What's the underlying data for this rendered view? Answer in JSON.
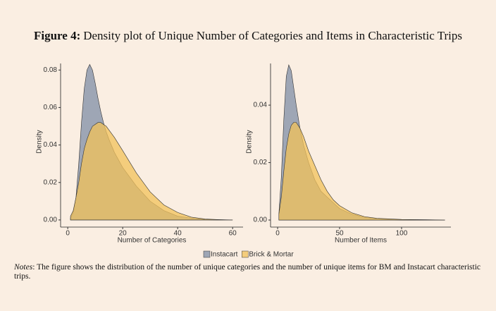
{
  "figure_label": "Figure 4:",
  "title": "Density plot of Unique Number of Categories and Items in Characteristic Trips",
  "legend": [
    {
      "name": "Instacart",
      "color": "#7f8ea6"
    },
    {
      "name": "Brick & Mortar",
      "color": "#f2c25a"
    }
  ],
  "notes_label": "Notes",
  "notes": ": The figure shows the distribution of the number of unique categories and the number of unique items for BM and Instacart characteristic trips.",
  "chart_data": [
    {
      "type": "area",
      "xlabel": "Number of Categories",
      "ylabel": "Density",
      "x": [
        1,
        2,
        3,
        4,
        5,
        6,
        7,
        8,
        9,
        10,
        11,
        12,
        13,
        14,
        15,
        17,
        20,
        25,
        30,
        35,
        40,
        45,
        50,
        55,
        60
      ],
      "series": [
        {
          "legend": 0,
          "values": [
            0.001,
            0.004,
            0.012,
            0.03,
            0.052,
            0.07,
            0.08,
            0.083,
            0.08,
            0.073,
            0.065,
            0.058,
            0.052,
            0.047,
            0.043,
            0.036,
            0.028,
            0.018,
            0.01,
            0.005,
            0.002,
            0.001,
            0.0003,
            0.0001,
            0
          ]
        },
        {
          "legend": 1,
          "values": [
            0.002,
            0.005,
            0.012,
            0.02,
            0.03,
            0.038,
            0.043,
            0.047,
            0.05,
            0.051,
            0.052,
            0.052,
            0.051,
            0.05,
            0.048,
            0.044,
            0.037,
            0.025,
            0.015,
            0.008,
            0.004,
            0.0015,
            0.0005,
            0.0002,
            0
          ]
        }
      ],
      "xlim": [
        -2.6,
        63.8
      ],
      "ylim": [
        -0.0038,
        0.0835
      ],
      "xticks": [
        0,
        20,
        40,
        60
      ],
      "yticks": [
        {
          "value": 0,
          "label": "0.00"
        },
        {
          "value": 0.02,
          "label": "0.02"
        },
        {
          "value": 0.04,
          "label": "0.04"
        },
        {
          "value": 0.06,
          "label": "0.06"
        },
        {
          "value": 0.08,
          "label": "0.08"
        }
      ]
    },
    {
      "type": "area",
      "xlabel": "Number of Items",
      "ylabel": "Density",
      "x": [
        1,
        3,
        5,
        7,
        9,
        11,
        13,
        15,
        18,
        21,
        25,
        30,
        35,
        40,
        45,
        50,
        60,
        70,
        80,
        100,
        120,
        135
      ],
      "series": [
        {
          "legend": 0,
          "values": [
            0.002,
            0.015,
            0.035,
            0.05,
            0.054,
            0.052,
            0.046,
            0.04,
            0.032,
            0.026,
            0.02,
            0.014,
            0.01,
            0.008,
            0.006,
            0.004,
            0.002,
            0.001,
            0.0005,
            0.0001,
            0,
            0
          ]
        },
        {
          "legend": 1,
          "values": [
            0.002,
            0.008,
            0.017,
            0.025,
            0.03,
            0.033,
            0.034,
            0.034,
            0.032,
            0.029,
            0.024,
            0.019,
            0.014,
            0.01,
            0.007,
            0.005,
            0.0025,
            0.0012,
            0.0006,
            0.0002,
            0.0001,
            0
          ]
        }
      ],
      "xlim": [
        -5.7,
        139.8
      ],
      "ylim": [
        -0.00245,
        0.0545
      ],
      "xticks": [
        0,
        50,
        100
      ],
      "yticks": [
        {
          "value": 0,
          "label": "0.00"
        },
        {
          "value": 0.02,
          "label": "0.02"
        },
        {
          "value": 0.04,
          "label": "0.04"
        }
      ]
    }
  ]
}
